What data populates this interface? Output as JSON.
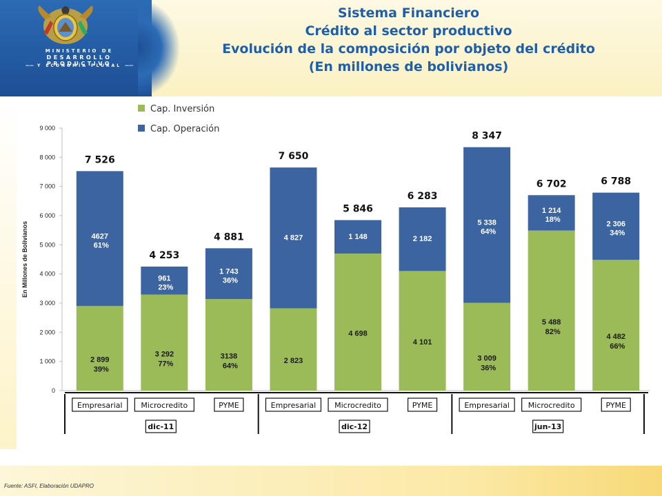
{
  "header": {
    "title_lines": [
      "Sistema Financiero",
      "Crédito al sector productivo",
      "Evolución de la composición por objeto del crédito",
      "(En millones de bolivianos)"
    ],
    "ministry_lines": [
      "MINISTERIO DE",
      "DESARROLLO PRODUCTIVO",
      "Y ECONOMÍA PLURAL"
    ]
  },
  "colors": {
    "inversion": "#9bbb59",
    "operacion": "#3b64a0",
    "title": "#1f5ea8"
  },
  "source_note": "Fuente: ASFI, Elaboración UDAPRO",
  "chart_data": {
    "type": "bar",
    "stacked": true,
    "ylabel": "En Millones de Bolivianos",
    "ylim": [
      0,
      9000
    ],
    "yticks": [
      "0",
      "1 000",
      "2 000",
      "3 000",
      "4 000",
      "5 000",
      "6 000",
      "7 000",
      "8 000",
      "9 000"
    ],
    "legend_position": "top-left",
    "periods": [
      "dic-11",
      "dic-12",
      "jun-13"
    ],
    "categories": [
      "Empresarial",
      "Microcredito",
      "PYME",
      "Empresarial",
      "Microcredito",
      "PYME",
      "Empresarial",
      "Microcredito",
      "PYME"
    ],
    "series": [
      {
        "name": "Cap. Inversión",
        "values": [
          2899,
          3292,
          3138,
          2823,
          4698,
          4101,
          3009,
          5488,
          4482
        ],
        "labels": [
          "2 899",
          "3 292",
          "3138",
          "2 823",
          "4 698",
          "4 101",
          "3 009",
          "5 488",
          "4 482"
        ],
        "pct_labels": [
          "39%",
          "77%",
          "64%",
          "",
          "",
          "",
          "36%",
          "82%",
          "66%"
        ]
      },
      {
        "name": "Cap. Operación",
        "values": [
          4627,
          961,
          1743,
          4827,
          1148,
          2182,
          5338,
          1214,
          2306
        ],
        "labels": [
          "4627",
          "961",
          "1 743",
          "4 827",
          "1 148",
          "2 182",
          "5 338",
          "1 214",
          "2 306"
        ],
        "pct_labels": [
          "61%",
          "23%",
          "36%",
          "",
          "",
          "",
          "64%",
          "18%",
          "34%"
        ]
      }
    ],
    "totals": [
      "7 526",
      "4 253",
      "4 881",
      "7 650",
      "5 846",
      "6 283",
      "8 347",
      "6 702",
      "6 788"
    ]
  }
}
